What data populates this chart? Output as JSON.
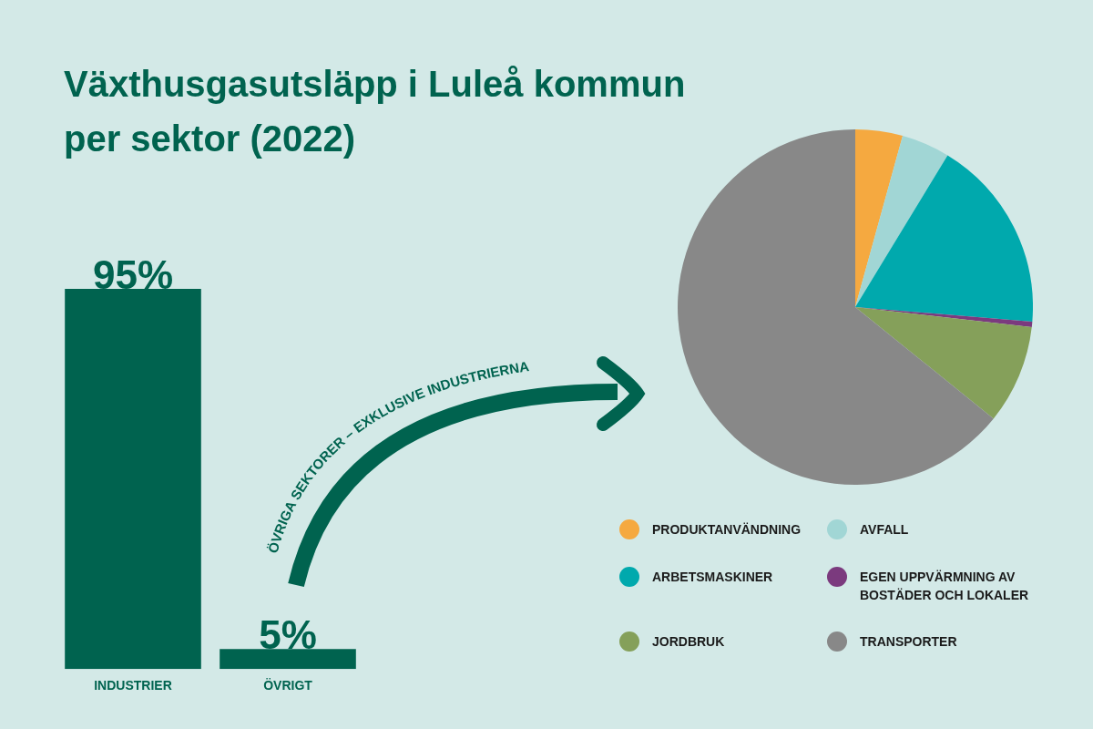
{
  "chart_data": [
    {
      "type": "bar",
      "title": "Växthusgasutsläpp i Luleå kommun per sektor (2022)",
      "categories": [
        "INDUSTRIER",
        "ÖVRIGT"
      ],
      "values": [
        95,
        5
      ],
      "value_labels": [
        "95%",
        "5%"
      ],
      "color": "#00634f",
      "annotations": [
        "ÖVRIGA SEKTORER – EXKLUSIVE INDUSTRIERNA"
      ]
    },
    {
      "type": "pie",
      "categories": [
        "PRODUKTANVÄNDNING",
        "AVFALL",
        "ARBETSMASKINER",
        "EGEN UPPVÄRMNING AV BOSTÄDER OCH LOKALER",
        "JORDBRUK",
        "TRANSPORTER"
      ],
      "values": [
        4.3,
        4.4,
        17.6,
        0.5,
        9.0,
        64.2
      ],
      "colors": [
        "#f5a940",
        "#a1d6d5",
        "#00a9ad",
        "#7b3a7e",
        "#85a05a",
        "#888888"
      ],
      "legend": "bottom"
    }
  ]
}
